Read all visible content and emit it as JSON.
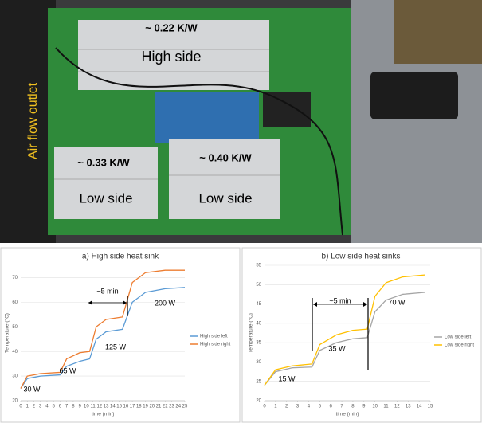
{
  "photo": {
    "labels": [
      "~ 0.22 K/W",
      "High side",
      "~ 0.33 K/W",
      "Low side",
      "~ 0.40 K/W",
      "Low side",
      "Air flow outlet"
    ]
  },
  "chart_data": [
    {
      "type": "line",
      "title": "a) High side heat sink",
      "x_label": "time (min)",
      "y_label": "Temperature (°C)",
      "x": [
        0,
        1,
        3,
        6,
        7,
        9,
        10.5,
        11.5,
        13,
        15.5,
        17,
        19,
        22,
        25
      ],
      "series": [
        {
          "name": "High side left",
          "color": "#5b9bd5",
          "values": [
            25,
            29,
            30,
            30.5,
            34,
            36,
            37,
            45,
            48,
            49,
            60,
            64,
            65.5,
            66
          ]
        },
        {
          "name": "High side right",
          "color": "#ed7d31",
          "values": [
            25,
            30,
            31,
            31.5,
            37,
            39.5,
            40,
            50,
            53,
            54,
            68,
            72,
            73,
            73
          ]
        }
      ],
      "xlim": [
        0,
        25
      ],
      "xticks": [
        0,
        1,
        2,
        3,
        4,
        5,
        6,
        7,
        8,
        9,
        10,
        11,
        12,
        13,
        14,
        15,
        16,
        17,
        18,
        19,
        20,
        21,
        22,
        23,
        24,
        25
      ],
      "ylim": [
        20,
        75
      ],
      "yticks": [
        20,
        30,
        40,
        50,
        60,
        70
      ],
      "grid": true,
      "annotations": [
        "~5 min",
        "30 W",
        "65 W",
        "125 W",
        "200 W"
      ]
    },
    {
      "type": "line",
      "title": "b) Low side heat sinks",
      "x_label": "time (min)",
      "y_label": "Temperature (°C)",
      "x": [
        0,
        1,
        2.5,
        4.3,
        5,
        6.5,
        8,
        9.3,
        10,
        11,
        12.5,
        14.5
      ],
      "series": [
        {
          "name": "Low side left",
          "color": "#a5a5a5",
          "values": [
            24,
            27.5,
            28.5,
            28.7,
            33,
            35,
            36,
            36.3,
            43,
            46,
            47.5,
            48
          ]
        },
        {
          "name": "Low side right",
          "color": "#ffc000",
          "values": [
            24,
            28,
            29,
            29.5,
            34.5,
            37,
            38.2,
            38.5,
            47,
            50.5,
            52,
            52.5
          ]
        }
      ],
      "xlim": [
        0,
        15
      ],
      "xticks": [
        0,
        1,
        2,
        3,
        4,
        5,
        6,
        7,
        8,
        9,
        10,
        11,
        12,
        13,
        14,
        15
      ],
      "ylim": [
        20,
        55
      ],
      "yticks": [
        20,
        25,
        30,
        35,
        40,
        45,
        50,
        55
      ],
      "grid": true,
      "annotations": [
        "~5 min",
        "15 W",
        "35 W",
        "70 W"
      ]
    }
  ]
}
